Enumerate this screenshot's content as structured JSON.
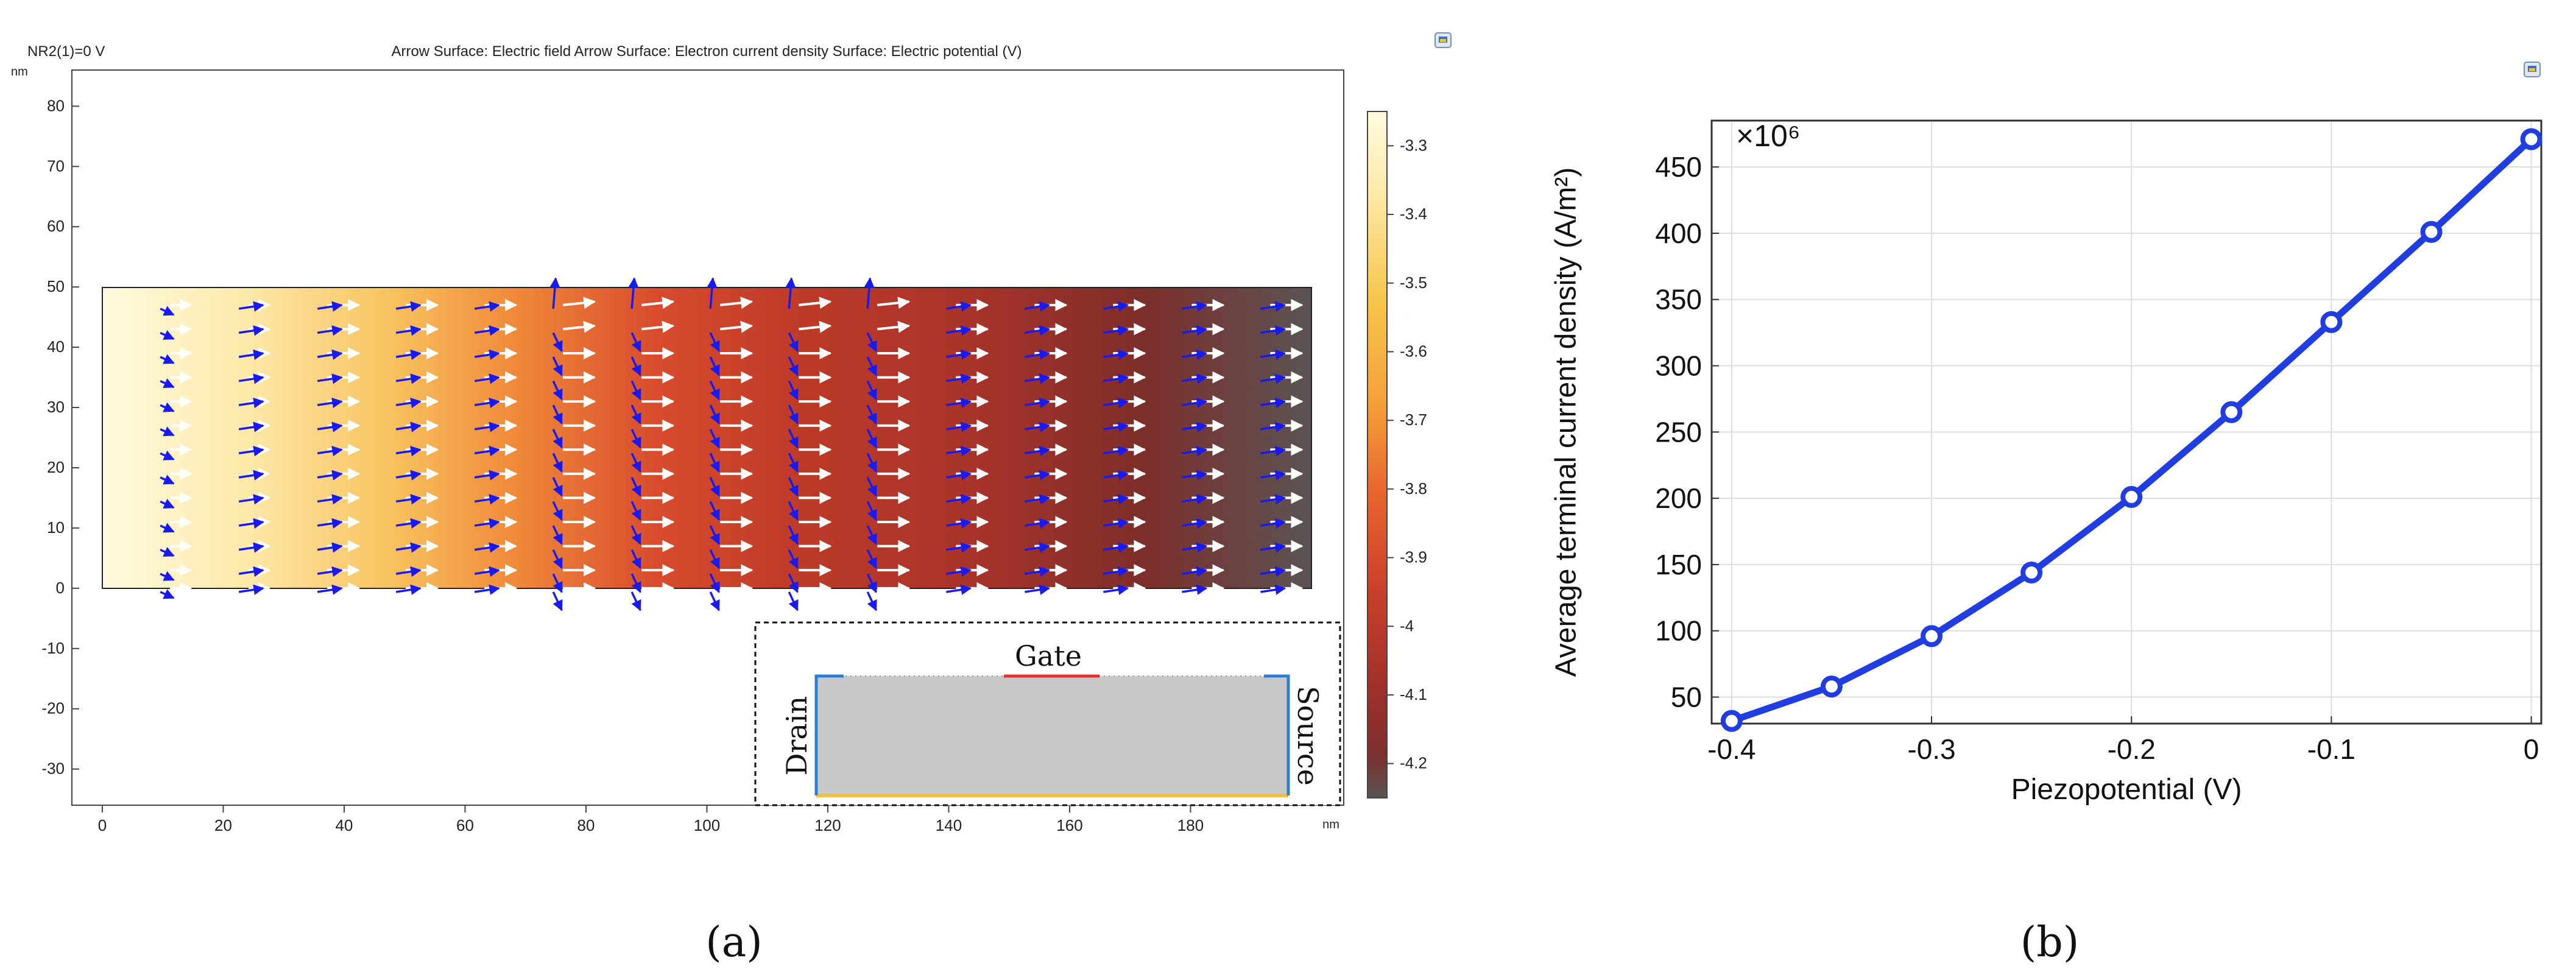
{
  "panel_a": {
    "header_left": "NR2(1)=0 V",
    "header_title": "Arrow Surface: Electric field  Arrow Surface: Electron current density  Surface: Electric potential (V)",
    "caption": "(a)",
    "unit_y": "nm",
    "unit_x": "nm",
    "inset": {
      "gate": "Gate",
      "drain": "Drain",
      "source": "Source"
    }
  },
  "panel_b": {
    "caption": "(b)"
  },
  "colors": {
    "efield_arrows": "#ffffff",
    "current_arrows": "#1a1aee",
    "line": "#1f3de0",
    "gate": "#e03030",
    "contacts": "#2a7fd4",
    "bottom": "#f0c040"
  },
  "chart_data": [
    {
      "type": "heatmap",
      "title": "Arrow Surface: Electric field  Arrow Surface: Electron current density  Surface: Electric potential (V)",
      "xlabel": "nm",
      "ylabel": "nm",
      "xlim": [
        0,
        200
      ],
      "ylim": [
        -36,
        86
      ],
      "domain_x": [
        0,
        200
      ],
      "domain_y": [
        0,
        50
      ],
      "x_ticks": [
        "0",
        "20",
        "40",
        "60",
        "80",
        "100",
        "120",
        "140",
        "160",
        "180"
      ],
      "y_ticks": [
        "80",
        "70",
        "60",
        "50",
        "40",
        "30",
        "20",
        "10",
        "0",
        "-10",
        "-20",
        "-30"
      ],
      "colorbar": {
        "label": "Electric potential (V)",
        "range": [
          -4.25,
          -3.25
        ],
        "ticks": [
          "-3.3",
          "-3.4",
          "-3.5",
          "-3.6",
          "-3.7",
          "-3.8",
          "-3.9",
          "-4",
          "-4.1",
          "-4.2"
        ]
      },
      "potential_profile": {
        "x": [
          0,
          20,
          40,
          60,
          80,
          100,
          120,
          140,
          160,
          180,
          200
        ],
        "v": [
          -3.25,
          -3.4,
          -3.6,
          -3.8,
          -4.05,
          -4.15,
          -4.1,
          -4.15,
          -4.15,
          -4.2,
          -4.25
        ]
      },
      "arrow_columns_x": [
        12,
        25,
        38,
        51,
        64,
        77,
        90,
        103,
        116,
        129,
        142,
        155,
        168,
        181,
        194
      ],
      "arrow_rows_y": [
        47,
        43,
        39,
        35,
        31,
        27,
        23,
        19,
        15,
        11,
        7,
        3,
        0
      ]
    },
    {
      "type": "line",
      "xlabel": "Piezopotential (V)",
      "ylabel": "Average terminal current density (A/m²)",
      "ylabel_multiplier": "×10⁶",
      "x": [
        -0.4,
        -0.35,
        -0.3,
        -0.25,
        -0.2,
        -0.15,
        -0.1,
        -0.05,
        0
      ],
      "series": [
        {
          "name": "Average terminal current density",
          "values": [
            32,
            58,
            96,
            144,
            201,
            265,
            333,
            401,
            471
          ]
        }
      ],
      "xlim": [
        -0.41,
        0.005
      ],
      "ylim": [
        30,
        485
      ],
      "x_ticks": [
        -0.4,
        -0.3,
        -0.2,
        -0.1,
        0
      ],
      "x_tick_labels": [
        "-0.4",
        "-0.3",
        "-0.2",
        "-0.1",
        "0"
      ],
      "y_ticks": [
        50,
        100,
        150,
        200,
        250,
        300,
        350,
        400,
        450
      ],
      "y_tick_labels": [
        "50",
        "100",
        "150",
        "200",
        "250",
        "300",
        "350",
        "400",
        "450"
      ],
      "grid": true,
      "markers": "circle"
    }
  ]
}
